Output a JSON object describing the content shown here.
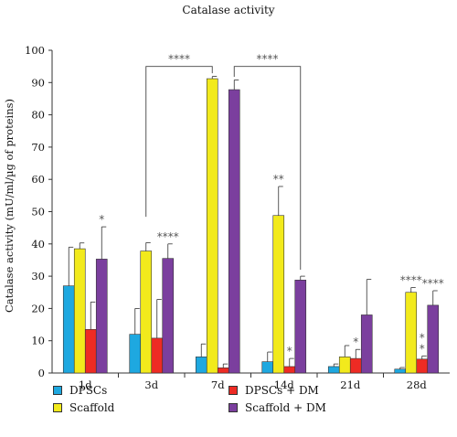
{
  "chart_data": {
    "type": "bar",
    "title": "Catalase activity",
    "ylabel": "Catalase activity (mU/ml/µg of proteins)",
    "xlabel": "",
    "ylim": [
      0,
      100
    ],
    "yticks": [
      0,
      10,
      20,
      30,
      40,
      50,
      60,
      70,
      80,
      90,
      100
    ],
    "categories": [
      "1d",
      "3d",
      "7d",
      "14d",
      "21d",
      "28d"
    ],
    "series": [
      {
        "name": "DPSCs",
        "color": "#1ea8e0",
        "values": [
          27,
          12,
          5,
          3.5,
          2,
          1.2
        ],
        "errors": [
          12,
          8,
          4,
          3,
          0.8,
          0.5
        ]
      },
      {
        "name": "Scaffold",
        "color": "#f2ea1c",
        "values": [
          38.5,
          37.8,
          91.2,
          48.8,
          5,
          25
        ],
        "errors": [
          1.8,
          2.6,
          0.7,
          9,
          3.5,
          1.5
        ]
      },
      {
        "name": "DPSCs + DM",
        "color": "#ee2b24",
        "values": [
          13.5,
          10.8,
          1.6,
          2,
          4.5,
          4.3
        ],
        "errors": [
          8.5,
          12,
          1.2,
          2.5,
          2.8,
          1
        ]
      },
      {
        "name": "Scaffold + DM",
        "color": "#7b3f9e",
        "values": [
          35.3,
          35.5,
          87.8,
          28.8,
          18,
          21
        ],
        "errors": [
          10,
          4.5,
          3,
          1.2,
          11,
          4.5
        ]
      }
    ],
    "significance": [
      {
        "category": "1d",
        "series": "Scaffold + DM",
        "label": "*"
      },
      {
        "category": "3d",
        "series": "Scaffold + DM",
        "label": "****"
      },
      {
        "category": "14d",
        "series": "Scaffold",
        "label": "**"
      },
      {
        "category": "14d",
        "series": "DPSCs + DM",
        "label": "*"
      },
      {
        "category": "21d",
        "series": "DPSCs + DM",
        "label": "*"
      },
      {
        "category": "28d",
        "series": "Scaffold",
        "label": "****"
      },
      {
        "category": "28d",
        "series": "Scaffold + DM",
        "label": "****"
      },
      {
        "category": "28d",
        "series": "DPSCs + DM",
        "label": "*"
      },
      {
        "category": "28d",
        "series": "DPSCs + DM",
        "label": "*"
      }
    ],
    "brackets": [
      {
        "from": "3d",
        "to": "7d",
        "label": "****"
      },
      {
        "from": "7d",
        "to": "14d",
        "label": "****"
      }
    ],
    "legend_placement": "bottom",
    "grid": false
  }
}
